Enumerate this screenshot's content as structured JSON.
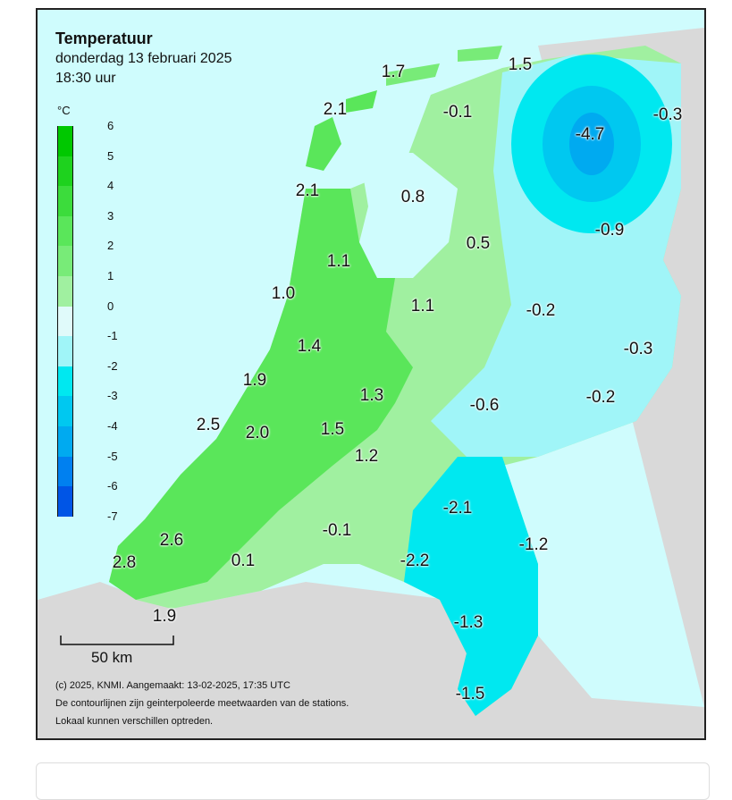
{
  "map": {
    "title": "Temperatuur",
    "subtitle": "donderdag 13 februari 2025",
    "time": "18:30 uur",
    "unit": "°C",
    "legend_ticks": [
      "6",
      "5",
      "4",
      "3",
      "2",
      "1",
      "0",
      "-1",
      "-2",
      "-3",
      "-4",
      "-5",
      "-6",
      "-7"
    ],
    "legend_colors": [
      "#00c800",
      "#1ed21e",
      "#3cdc3c",
      "#5ae65a",
      "#78eb78",
      "#a0f0a0",
      "#e0fafa",
      "#a0f5f8",
      "#00e8f0",
      "#00c8f0",
      "#00aaf0",
      "#0080f0",
      "#0055e6",
      "#0033cc"
    ],
    "values": [
      {
        "label": "1.7"
      },
      {
        "label": "1.5"
      },
      {
        "label": "2.1"
      },
      {
        "label": "-0.1"
      },
      {
        "label": "-4.7"
      },
      {
        "label": "-0.3"
      },
      {
        "label": "2.1"
      },
      {
        "label": "0.8"
      },
      {
        "label": "-0.9"
      },
      {
        "label": "0.5"
      },
      {
        "label": "1.1"
      },
      {
        "label": "1.0"
      },
      {
        "label": "1.1"
      },
      {
        "label": "-0.2"
      },
      {
        "label": "1.4"
      },
      {
        "label": "-0.3"
      },
      {
        "label": "1.9"
      },
      {
        "label": "1.3"
      },
      {
        "label": "-0.2"
      },
      {
        "label": "-0.6"
      },
      {
        "label": "2.5"
      },
      {
        "label": "2.0"
      },
      {
        "label": "1.5"
      },
      {
        "label": "1.2"
      },
      {
        "label": "-2.1"
      },
      {
        "label": "-0.1"
      },
      {
        "label": "2.6"
      },
      {
        "label": "-1.2"
      },
      {
        "label": "2.8"
      },
      {
        "label": "0.1"
      },
      {
        "label": "-2.2"
      },
      {
        "label": "1.9"
      },
      {
        "label": "-1.3"
      },
      {
        "label": "-1.5"
      }
    ],
    "scale_label": "50 km",
    "credit_lines": [
      "(c) 2025, KNMI. Aangemaakt: 13-02-2025, 17:35 UTC",
      "De contourlijnen zijn geinterpoleerde meetwaarden van de stations.",
      "Lokaal kunnen verschillen optreden."
    ],
    "colors": {
      "sea": "#cffcfd",
      "land_foreign": "#d9d9d9",
      "warm2": "#5ae65a",
      "warm1": "#78eb78",
      "mild": "#a0f0a0",
      "cool0": "#a0f5f8",
      "cold1": "#00e8f0",
      "cold4": "#00c8f0"
    }
  }
}
